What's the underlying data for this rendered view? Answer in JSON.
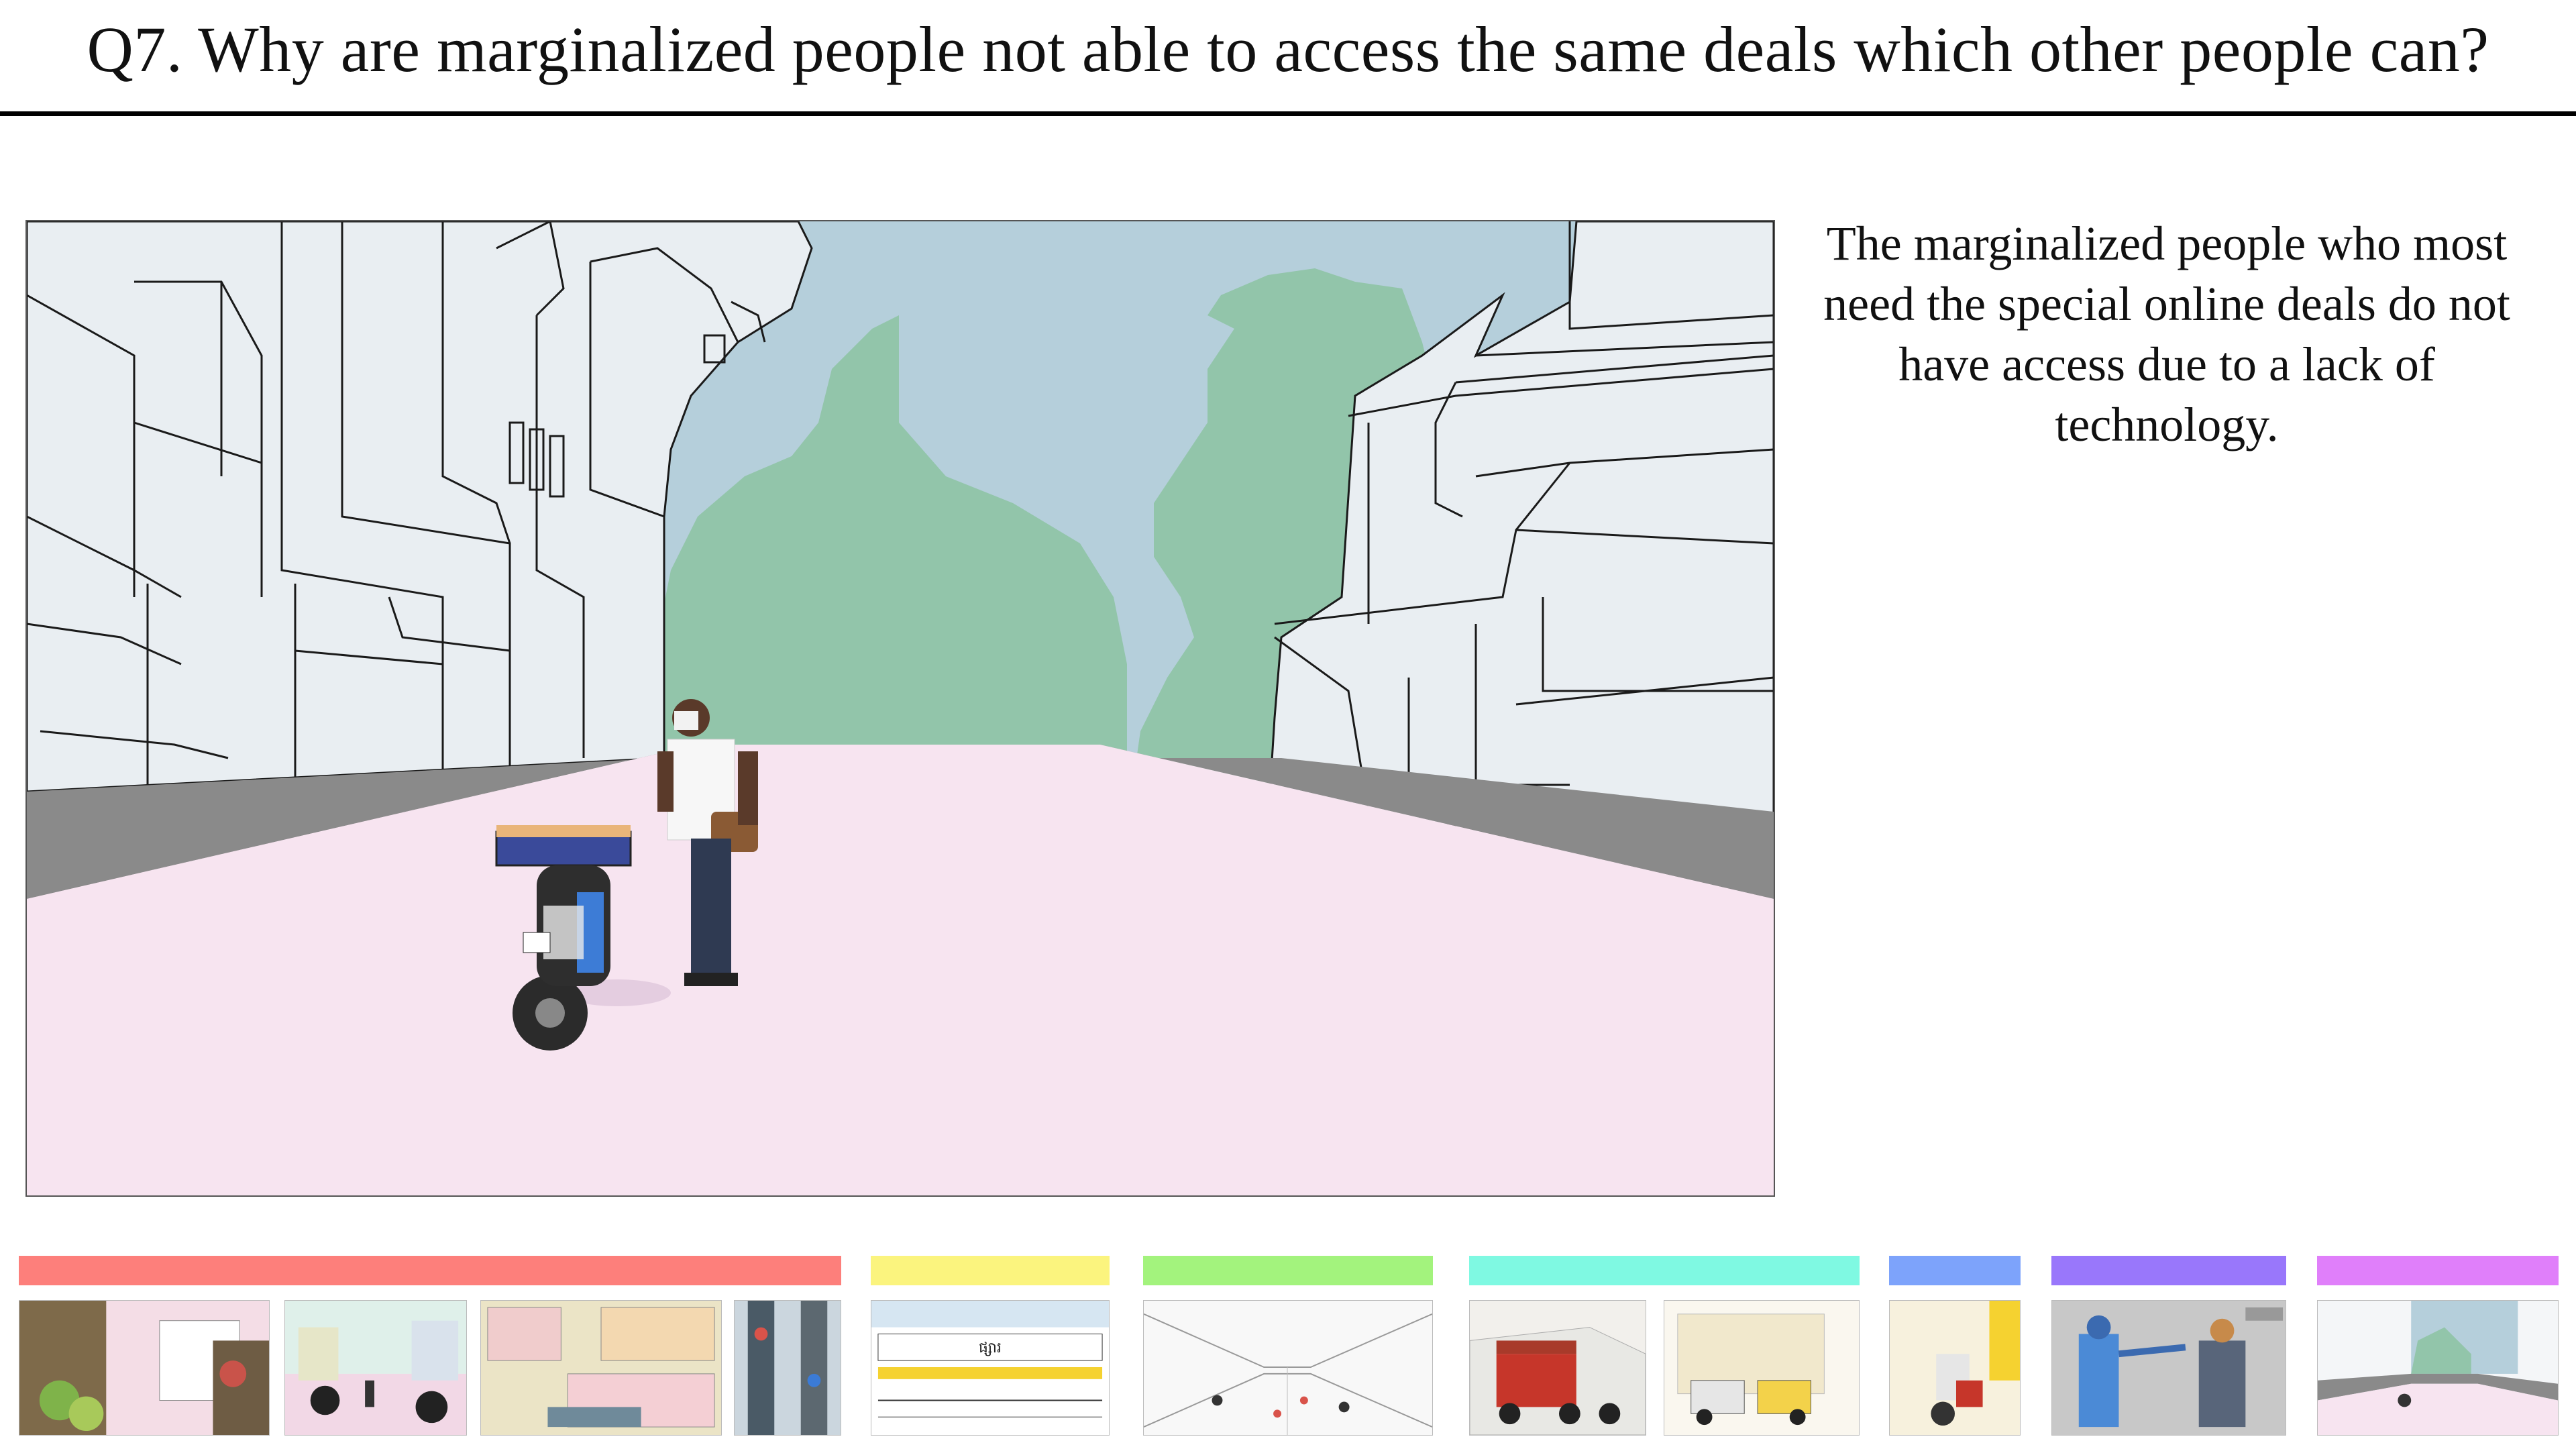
{
  "title": "Q7. Why are marginalized people not able to access the same deals which other people can?",
  "caption": "The marginalized people who most need the special online deals do not have access due to a lack of technology.",
  "colors": {
    "sky": "#b5cfdb",
    "trees": "#92c5aa",
    "road": "#8a8a8a",
    "ground": "#f7e4f0",
    "buildings": "#e9eef2",
    "outline": "#1a1a1a"
  },
  "timeline": {
    "sections": [
      {
        "name": "market",
        "color": "#fd7f7b"
      },
      {
        "name": "storefront",
        "color": "#fbf47e"
      },
      {
        "name": "street-sketch",
        "color": "#a3f37d"
      },
      {
        "name": "vehicles",
        "color": "#7ff9e2"
      },
      {
        "name": "vendor",
        "color": "#7da3fb"
      },
      {
        "name": "exchange",
        "color": "#9977fb"
      },
      {
        "name": "street-scene",
        "color": "#e07ffa"
      }
    ]
  },
  "storefront_sign": "ផ្សារ"
}
